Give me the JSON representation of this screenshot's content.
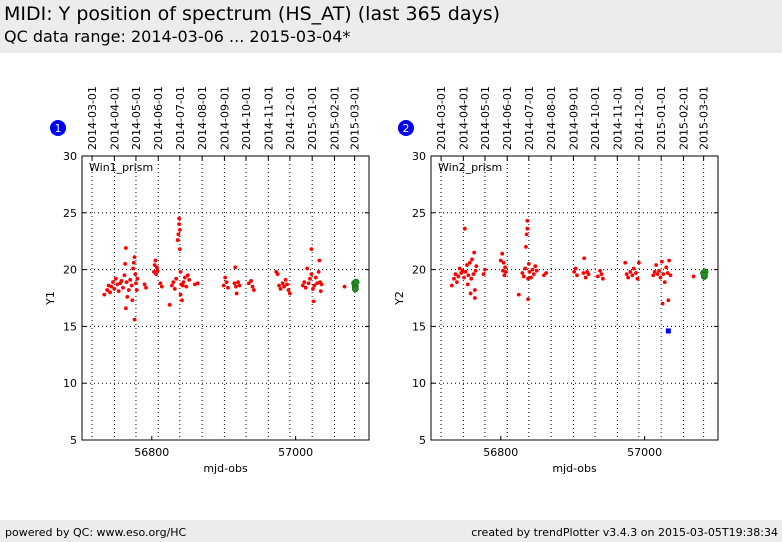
{
  "header": {
    "title": "MIDI: Y position of spectrum (HS_AT) (last 365 days)",
    "subtitle": "QC data range: 2014-03-06 ... 2015-03-04*"
  },
  "footer": {
    "left": "powered by QC: www.eso.org/HC",
    "right": "created by trendPlotter v3.4.3 on 2015-03-05T19:38:34"
  },
  "colors": {
    "header_bg": "#ececec",
    "data_points": "#ff0000",
    "outlier_points": "#0000ff",
    "latest_points": "#228b22",
    "badge": "#0000ee"
  },
  "chart_data": [
    {
      "type": "scatter",
      "badge": "1",
      "panel_label": "Win1_prism",
      "xlabel": "mjd-obs",
      "ylabel": "Y1",
      "xlim": [
        56703,
        57102
      ],
      "ylim": [
        5,
        30
      ],
      "xticks": [
        56800,
        57000
      ],
      "yticks": [
        5,
        10,
        15,
        20,
        25,
        30
      ],
      "date_ticks": [
        {
          "mjd": 56717,
          "label": "2014-03-01"
        },
        {
          "mjd": 56748,
          "label": "2014-04-01"
        },
        {
          "mjd": 56778,
          "label": "2014-05-01"
        },
        {
          "mjd": 56809,
          "label": "2014-06-01"
        },
        {
          "mjd": 56839,
          "label": "2014-07-01"
        },
        {
          "mjd": 56870,
          "label": "2014-08-01"
        },
        {
          "mjd": 56901,
          "label": "2014-09-01"
        },
        {
          "mjd": 56931,
          "label": "2014-10-01"
        },
        {
          "mjd": 56962,
          "label": "2014-11-01"
        },
        {
          "mjd": 56992,
          "label": "2014-12-01"
        },
        {
          "mjd": 57023,
          "label": "2015-01-01"
        },
        {
          "mjd": 57054,
          "label": "2015-02-01"
        },
        {
          "mjd": 57082,
          "label": "2015-03-01"
        }
      ],
      "grid": true,
      "series": [
        {
          "role": "data",
          "points": [
            [
              56734,
              17.8
            ],
            [
              56738,
              18.2
            ],
            [
              56740,
              18.6
            ],
            [
              56742,
              18.0
            ],
            [
              56744,
              18.5
            ],
            [
              56746,
              18.9
            ],
            [
              56748,
              18.3
            ],
            [
              56750,
              19.2
            ],
            [
              56752,
              18.7
            ],
            [
              56754,
              18.1
            ],
            [
              56756,
              18.8
            ],
            [
              56758,
              19.0
            ],
            [
              56760,
              18.4
            ],
            [
              56762,
              19.5
            ],
            [
              56763,
              20.5
            ],
            [
              56764,
              21.9
            ],
            [
              56764,
              16.6
            ],
            [
              56765,
              18.9
            ],
            [
              56766,
              17.6
            ],
            [
              56768,
              18.2
            ],
            [
              56770,
              19.1
            ],
            [
              56772,
              18.6
            ],
            [
              56773,
              17.3
            ],
            [
              56774,
              20.1
            ],
            [
              56775,
              20.6
            ],
            [
              56776,
              21.1
            ],
            [
              56776,
              15.6
            ],
            [
              56777,
              19.6
            ],
            [
              56778,
              18.8
            ],
            [
              56779,
              18.2
            ],
            [
              56780,
              19.2
            ],
            [
              56790,
              18.7
            ],
            [
              56792,
              18.4
            ],
            [
              56803,
              19.8
            ],
            [
              56804,
              20.4
            ],
            [
              56805,
              20.8
            ],
            [
              56806,
              19.6
            ],
            [
              56807,
              20.2
            ],
            [
              56808,
              19.9
            ],
            [
              56812,
              18.8
            ],
            [
              56814,
              18.5
            ],
            [
              56825,
              16.9
            ],
            [
              56828,
              18.6
            ],
            [
              56830,
              18.9
            ],
            [
              56832,
              18.3
            ],
            [
              56834,
              19.2
            ],
            [
              56836,
              22.6
            ],
            [
              56837,
              23.1
            ],
            [
              56838,
              24.5
            ],
            [
              56838,
              24.0
            ],
            [
              56839,
              23.5
            ],
            [
              56839,
              21.8
            ],
            [
              56840,
              19.8
            ],
            [
              56840,
              17.8
            ],
            [
              56841,
              18.7
            ],
            [
              56842,
              17.3
            ],
            [
              56843,
              18.6
            ],
            [
              56844,
              18.9
            ],
            [
              56846,
              19.3
            ],
            [
              56848,
              18.5
            ],
            [
              56850,
              19.5
            ],
            [
              56852,
              19.1
            ],
            [
              56860,
              18.7
            ],
            [
              56864,
              18.8
            ],
            [
              56900,
              18.6
            ],
            [
              56902,
              19.3
            ],
            [
              56904,
              18.9
            ],
            [
              56906,
              18.4
            ],
            [
              56915,
              18.8
            ],
            [
              56916,
              20.2
            ],
            [
              56917,
              18.5
            ],
            [
              56918,
              17.9
            ],
            [
              56920,
              18.9
            ],
            [
              56922,
              18.6
            ],
            [
              56935,
              18.8
            ],
            [
              56938,
              19.0
            ],
            [
              56940,
              18.5
            ],
            [
              56942,
              18.2
            ],
            [
              56973,
              19.8
            ],
            [
              56975,
              19.6
            ],
            [
              56977,
              18.6
            ],
            [
              56979,
              18.3
            ],
            [
              56982,
              18.8
            ],
            [
              56984,
              18.5
            ],
            [
              56986,
              19.1
            ],
            [
              56988,
              18.7
            ],
            [
              56990,
              18.2
            ],
            [
              56992,
              17.9
            ],
            [
              57010,
              18.6
            ],
            [
              57012,
              18.9
            ],
            [
              57014,
              18.4
            ],
            [
              57016,
              20.1
            ],
            [
              57018,
              18.8
            ],
            [
              57020,
              19.2
            ],
            [
              57022,
              19.6
            ],
            [
              57022,
              21.8
            ],
            [
              57024,
              18.3
            ],
            [
              57025,
              17.2
            ],
            [
              57026,
              18.6
            ],
            [
              57028,
              19.3
            ],
            [
              57030,
              18.8
            ],
            [
              57032,
              19.8
            ],
            [
              57033,
              20.8
            ],
            [
              57034,
              18.9
            ],
            [
              57035,
              18.1
            ],
            [
              57036,
              18.7
            ],
            [
              57068,
              18.5
            ]
          ]
        },
        {
          "role": "latest",
          "points": [
            [
              57082,
              18.8
            ],
            [
              57083,
              18.5
            ],
            [
              57084,
              18.9
            ],
            [
              57083,
              18.3
            ]
          ]
        }
      ]
    },
    {
      "type": "scatter",
      "badge": "2",
      "panel_label": "Win2_prism",
      "xlabel": "mjd-obs",
      "ylabel": "Y2",
      "xlim": [
        56703,
        57102
      ],
      "ylim": [
        5,
        30
      ],
      "xticks": [
        56800,
        57000
      ],
      "yticks": [
        5,
        10,
        15,
        20,
        25,
        30
      ],
      "date_ticks": [
        {
          "mjd": 56717,
          "label": "2014-03-01"
        },
        {
          "mjd": 56748,
          "label": "2014-04-01"
        },
        {
          "mjd": 56778,
          "label": "2014-05-01"
        },
        {
          "mjd": 56809,
          "label": "2014-06-01"
        },
        {
          "mjd": 56839,
          "label": "2014-07-01"
        },
        {
          "mjd": 56870,
          "label": "2014-08-01"
        },
        {
          "mjd": 56901,
          "label": "2014-09-01"
        },
        {
          "mjd": 56931,
          "label": "2014-10-01"
        },
        {
          "mjd": 56962,
          "label": "2014-11-01"
        },
        {
          "mjd": 56992,
          "label": "2014-12-01"
        },
        {
          "mjd": 57023,
          "label": "2015-01-01"
        },
        {
          "mjd": 57054,
          "label": "2015-02-01"
        },
        {
          "mjd": 57082,
          "label": "2015-03-01"
        }
      ],
      "grid": true,
      "series": [
        {
          "role": "data",
          "points": [
            [
              56732,
              18.6
            ],
            [
              56735,
              19.2
            ],
            [
              56737,
              19.6
            ],
            [
              56739,
              18.9
            ],
            [
              56741,
              19.4
            ],
            [
              56743,
              20.1
            ],
            [
              56745,
              19.7
            ],
            [
              56747,
              19.9
            ],
            [
              56749,
              19.3
            ],
            [
              56750,
              23.6
            ],
            [
              56751,
              19.8
            ],
            [
              56753,
              20.4
            ],
            [
              56754,
              18.7
            ],
            [
              56755,
              19.5
            ],
            [
              56757,
              20.6
            ],
            [
              56758,
              17.9
            ],
            [
              56759,
              19.2
            ],
            [
              56760,
              20.9
            ],
            [
              56762,
              19.6
            ],
            [
              56763,
              21.5
            ],
            [
              56764,
              18.2
            ],
            [
              56764,
              17.5
            ],
            [
              56765,
              19.9
            ],
            [
              56766,
              20.3
            ],
            [
              56776,
              19.6
            ],
            [
              56778,
              20.0
            ],
            [
              56800,
              20.8
            ],
            [
              56802,
              21.4
            ],
            [
              56803,
              19.9
            ],
            [
              56804,
              20.6
            ],
            [
              56805,
              19.5
            ],
            [
              56806,
              20.2
            ],
            [
              56807,
              19.8
            ],
            [
              56825,
              17.8
            ],
            [
              56830,
              19.7
            ],
            [
              56832,
              19.4
            ],
            [
              56834,
              20.1
            ],
            [
              56835,
              22.0
            ],
            [
              56836,
              23.1
            ],
            [
              56837,
              24.3
            ],
            [
              56837,
              23.6
            ],
            [
              56838,
              19.2
            ],
            [
              56838,
              17.4
            ],
            [
              56839,
              20.5
            ],
            [
              56840,
              19.8
            ],
            [
              56842,
              19.3
            ],
            [
              56844,
              20.0
            ],
            [
              56846,
              19.6
            ],
            [
              56848,
              20.3
            ],
            [
              56850,
              19.9
            ],
            [
              56860,
              19.5
            ],
            [
              56863,
              19.7
            ],
            [
              56902,
              19.8
            ],
            [
              56904,
              20.1
            ],
            [
              56906,
              19.5
            ],
            [
              56915,
              19.7
            ],
            [
              56916,
              21.0
            ],
            [
              56918,
              19.3
            ],
            [
              56920,
              19.8
            ],
            [
              56922,
              19.6
            ],
            [
              56935,
              19.4
            ],
            [
              56938,
              19.9
            ],
            [
              56940,
              19.6
            ],
            [
              56942,
              19.2
            ],
            [
              56973,
              20.6
            ],
            [
              56975,
              19.6
            ],
            [
              56977,
              19.3
            ],
            [
              56980,
              19.8
            ],
            [
              56983,
              19.5
            ],
            [
              56985,
              20.1
            ],
            [
              56988,
              19.7
            ],
            [
              56990,
              19.2
            ],
            [
              56992,
              20.6
            ],
            [
              57012,
              19.5
            ],
            [
              57014,
              19.8
            ],
            [
              57016,
              20.4
            ],
            [
              57018,
              19.6
            ],
            [
              57020,
              19.9
            ],
            [
              57022,
              19.3
            ],
            [
              57024,
              20.7
            ],
            [
              57025,
              17.0
            ],
            [
              57026,
              19.6
            ],
            [
              57028,
              18.9
            ],
            [
              57030,
              20.2
            ],
            [
              57032,
              19.7
            ],
            [
              57033,
              17.3
            ],
            [
              57034,
              20.8
            ],
            [
              57036,
              19.5
            ],
            [
              57068,
              19.4
            ]
          ]
        },
        {
          "role": "outlier",
          "points": [
            [
              57033,
              14.6
            ]
          ]
        },
        {
          "role": "latest",
          "points": [
            [
              57082,
              19.7
            ],
            [
              57083,
              19.4
            ],
            [
              57084,
              19.8
            ],
            [
              57083,
              19.5
            ]
          ]
        }
      ]
    }
  ]
}
